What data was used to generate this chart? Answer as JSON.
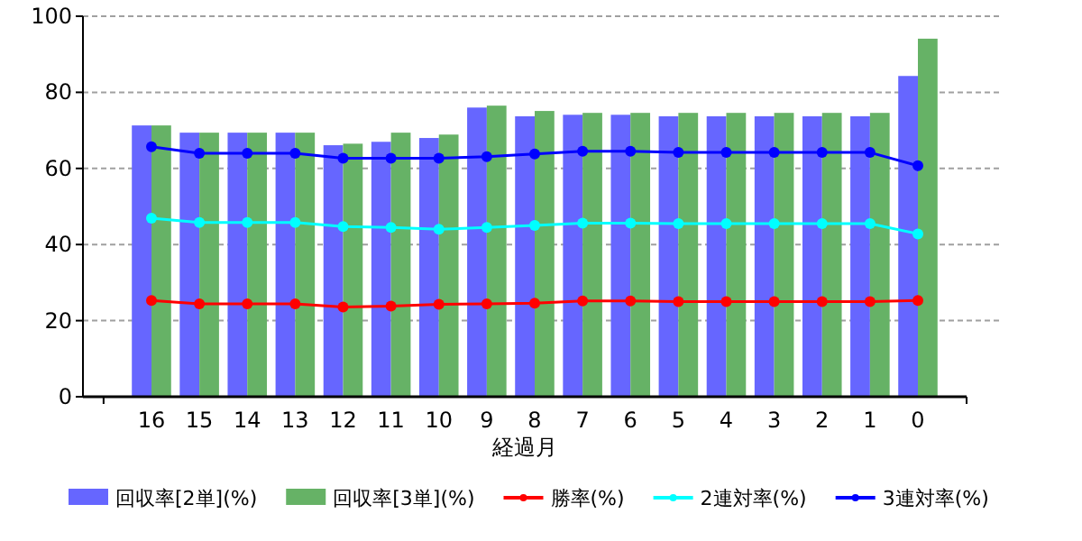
{
  "chart_data": {
    "type": "bar",
    "xlabel": "経過月",
    "categories": [
      "16",
      "15",
      "14",
      "13",
      "12",
      "11",
      "10",
      "9",
      "8",
      "7",
      "6",
      "5",
      "4",
      "3",
      "2",
      "1",
      "0"
    ],
    "ylim": [
      0,
      100
    ],
    "yticks": [
      0,
      20,
      40,
      60,
      80,
      100
    ],
    "grid": "y",
    "legend": "bottom",
    "marker": "circle",
    "series": [
      {
        "name": "回収率[2単](%)",
        "color": "#6666ff",
        "values": [
          71.3,
          69.4,
          69.4,
          69.4,
          66.1,
          67.0,
          68.0,
          76.0,
          73.7,
          74.1,
          74.1,
          73.7,
          73.7,
          73.7,
          73.7,
          73.7,
          84.3
        ]
      },
      {
        "name": "回収率[3単](%)",
        "color": "#66b266",
        "values": [
          71.3,
          69.4,
          69.4,
          69.4,
          66.5,
          69.4,
          68.9,
          76.5,
          75.1,
          74.6,
          74.6,
          74.6,
          74.6,
          74.6,
          74.6,
          74.6,
          94.1
        ]
      },
      {
        "name": "勝率(%)",
        "type": "line",
        "color": "#ff0000",
        "values": [
          25.3,
          24.4,
          24.4,
          24.4,
          23.6,
          23.8,
          24.3,
          24.4,
          24.6,
          25.2,
          25.2,
          25.0,
          25.0,
          25.0,
          25.0,
          25.0,
          25.3
        ]
      },
      {
        "name": "2連対率(%)",
        "type": "line",
        "color": "#00ffff",
        "values": [
          46.9,
          45.8,
          45.8,
          45.8,
          44.7,
          44.5,
          44.0,
          44.5,
          45.0,
          45.6,
          45.6,
          45.5,
          45.5,
          45.5,
          45.5,
          45.5,
          42.8
        ]
      },
      {
        "name": "3連対率(%)",
        "type": "line",
        "color": "#0000ff",
        "values": [
          65.7,
          64.0,
          64.0,
          64.0,
          62.7,
          62.7,
          62.7,
          63.1,
          63.8,
          64.5,
          64.5,
          64.2,
          64.2,
          64.2,
          64.2,
          64.2,
          60.7
        ]
      }
    ]
  }
}
